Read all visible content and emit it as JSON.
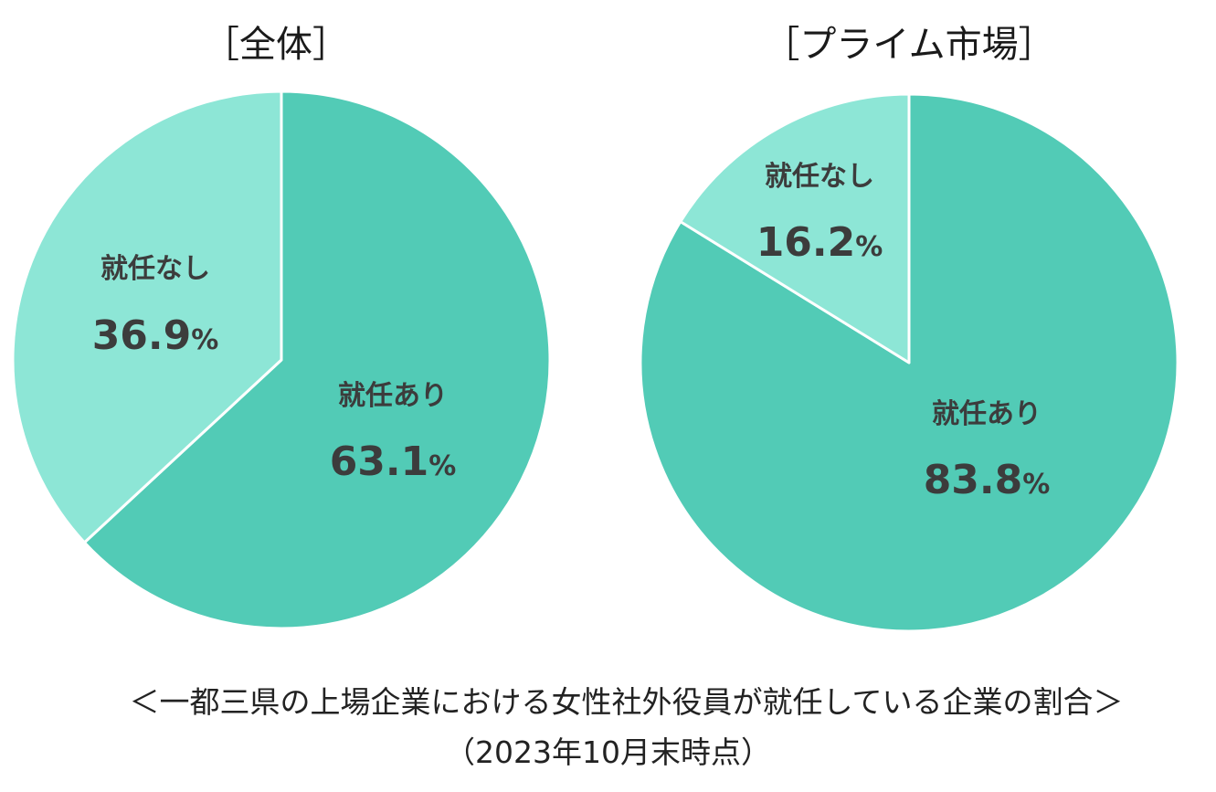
{
  "chart_data": [
    {
      "type": "pie",
      "title": "［全体］",
      "slices": [
        {
          "label": "就任あり",
          "value": 63.1,
          "value_text": "63.1",
          "unit": "%",
          "color": "#52cbb6"
        },
        {
          "label": "就任なし",
          "value": 36.9,
          "value_text": "36.9",
          "unit": "%",
          "color": "#8de6d6"
        }
      ]
    },
    {
      "type": "pie",
      "title": "［プライム市場］",
      "slices": [
        {
          "label": "就任あり",
          "value": 83.8,
          "value_text": "83.8",
          "unit": "%",
          "color": "#52cbb6"
        },
        {
          "label": "就任なし",
          "value": 16.2,
          "value_text": "16.2",
          "unit": "%",
          "color": "#8de6d6"
        }
      ]
    }
  ],
  "caption": {
    "line1": "＜一都三県の上場企業における女性社外役員が就任している企業の割合＞",
    "line2": "（2023年10月末時点）"
  }
}
